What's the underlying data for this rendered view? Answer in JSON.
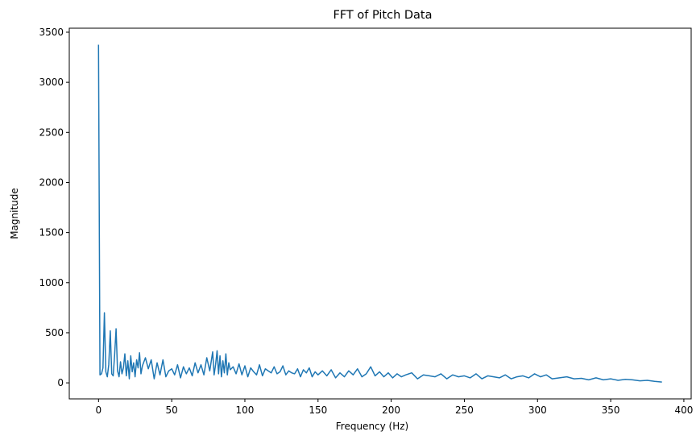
{
  "chart_data": {
    "type": "line",
    "title": "FFT of Pitch Data",
    "xlabel": "Frequency (Hz)",
    "ylabel": "Magnitude",
    "xlim": [
      -20,
      405
    ],
    "ylim": [
      -160,
      3540
    ],
    "xticks": [
      0,
      50,
      100,
      150,
      200,
      250,
      300,
      350,
      400
    ],
    "yticks": [
      0,
      500,
      1000,
      1500,
      2000,
      2500,
      3000,
      3500
    ],
    "grid": false,
    "legend": "none",
    "series": [
      {
        "color": "#1f77b4",
        "x": [
          0,
          1,
          2,
          3,
          4,
          5,
          6,
          7,
          8,
          9,
          10,
          11,
          12,
          13,
          14,
          15,
          16,
          17,
          18,
          19,
          20,
          21,
          22,
          23,
          24,
          25,
          26,
          27,
          28,
          29,
          30,
          32,
          34,
          36,
          38,
          40,
          42,
          44,
          46,
          48,
          50,
          52,
          54,
          56,
          58,
          60,
          62,
          64,
          66,
          68,
          70,
          72,
          74,
          76,
          78,
          79,
          80,
          81,
          82,
          83,
          84,
          85,
          86,
          87,
          88,
          89,
          90,
          92,
          94,
          96,
          98,
          100,
          102,
          104,
          106,
          108,
          110,
          112,
          114,
          116,
          118,
          120,
          122,
          124,
          126,
          128,
          130,
          132,
          134,
          136,
          138,
          140,
          142,
          144,
          146,
          148,
          150,
          153,
          156,
          159,
          162,
          165,
          168,
          171,
          174,
          177,
          180,
          183,
          186,
          189,
          192,
          195,
          198,
          201,
          204,
          207,
          210,
          214,
          218,
          222,
          226,
          230,
          234,
          238,
          242,
          246,
          250,
          254,
          258,
          262,
          266,
          270,
          274,
          278,
          282,
          286,
          290,
          294,
          298,
          302,
          306,
          310,
          315,
          320,
          325,
          330,
          335,
          340,
          345,
          350,
          355,
          360,
          365,
          370,
          375,
          380,
          385
        ],
        "y": [
          3375,
          80,
          90,
          150,
          700,
          110,
          60,
          180,
          520,
          90,
          70,
          280,
          540,
          120,
          60,
          210,
          90,
          150,
          290,
          70,
          220,
          40,
          270,
          110,
          200,
          60,
          230,
          150,
          300,
          90,
          170,
          250,
          140,
          230,
          40,
          200,
          80,
          230,
          60,
          120,
          140,
          80,
          180,
          50,
          160,
          90,
          150,
          70,
          200,
          100,
          180,
          80,
          250,
          120,
          310,
          80,
          180,
          320,
          90,
          270,
          60,
          220,
          100,
          290,
          80,
          200,
          130,
          160,
          90,
          190,
          80,
          170,
          60,
          150,
          110,
          80,
          180,
          70,
          140,
          120,
          100,
          160,
          90,
          110,
          170,
          80,
          120,
          100,
          90,
          140,
          60,
          130,
          100,
          150,
          60,
          110,
          80,
          120,
          70,
          130,
          50,
          100,
          60,
          120,
          80,
          140,
          60,
          90,
          160,
          70,
          110,
          60,
          100,
          50,
          90,
          60,
          80,
          100,
          40,
          80,
          70,
          60,
          90,
          40,
          80,
          60,
          70,
          50,
          90,
          40,
          70,
          60,
          50,
          80,
          40,
          60,
          70,
          50,
          90,
          60,
          80,
          40,
          50,
          60,
          40,
          45,
          30,
          50,
          30,
          40,
          25,
          35,
          30,
          20,
          25,
          15,
          8
        ]
      }
    ]
  }
}
